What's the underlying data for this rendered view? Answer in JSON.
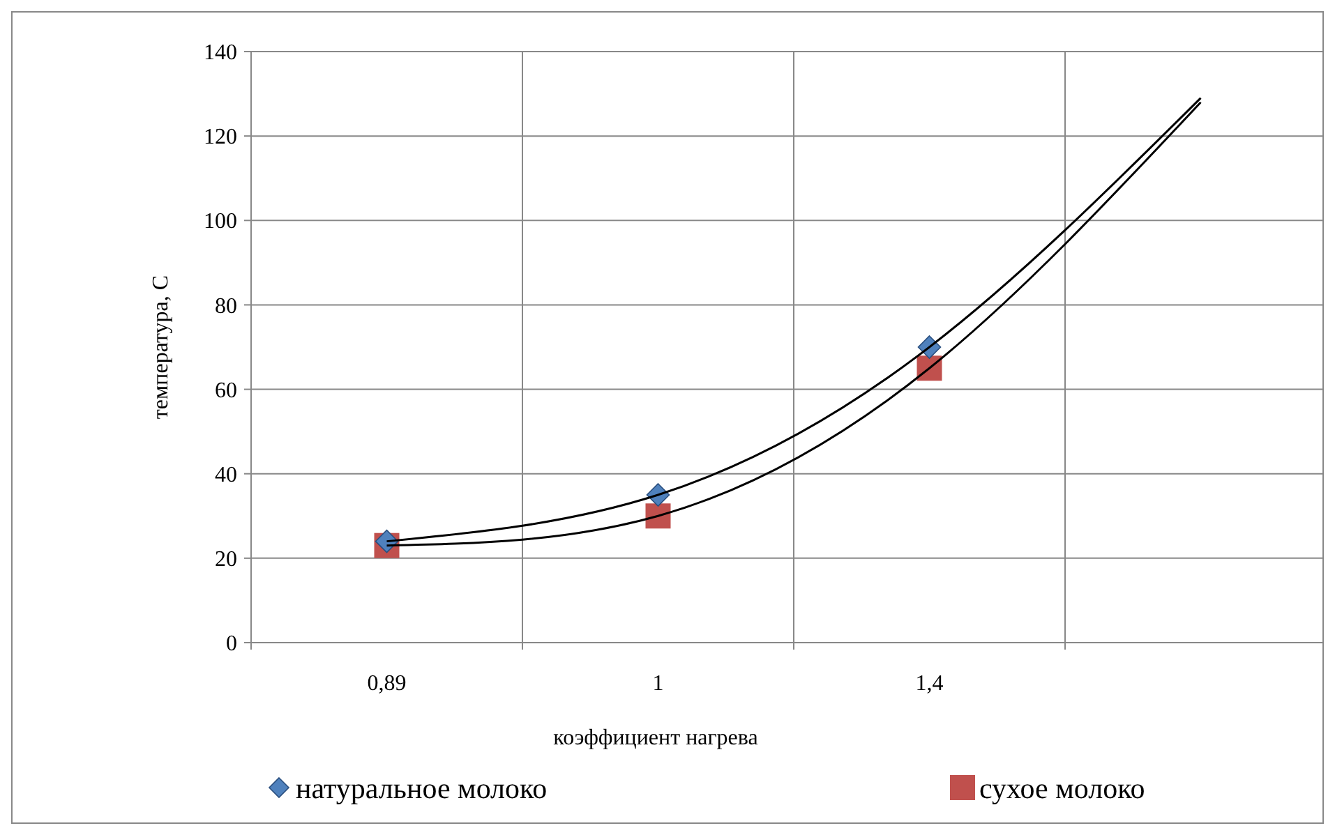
{
  "chart_data": {
    "type": "scatter",
    "xlabel": "коэффициент нагрева",
    "ylabel": "температура, С",
    "categories": [
      "0,89",
      "1",
      "1,4",
      null
    ],
    "ylim": [
      0,
      140
    ],
    "yticks": [
      0,
      20,
      40,
      60,
      80,
      100,
      120,
      140
    ],
    "grid": true,
    "legend": "bottom",
    "series": [
      {
        "name": "натуральное молоко",
        "marker": "diamond",
        "color": "#4f81bd",
        "values": [
          24,
          35,
          70,
          null
        ]
      },
      {
        "name": "сухое молоко",
        "marker": "square",
        "color": "#c0504d",
        "values": [
          23,
          30,
          65,
          null
        ]
      },
      {
        "type": "line",
        "marker": "none",
        "color": "#000000",
        "values": [
          24,
          35,
          70,
          129
        ]
      },
      {
        "type": "line",
        "marker": "none",
        "color": "#000000",
        "values": [
          23,
          30,
          65,
          128
        ]
      }
    ]
  }
}
